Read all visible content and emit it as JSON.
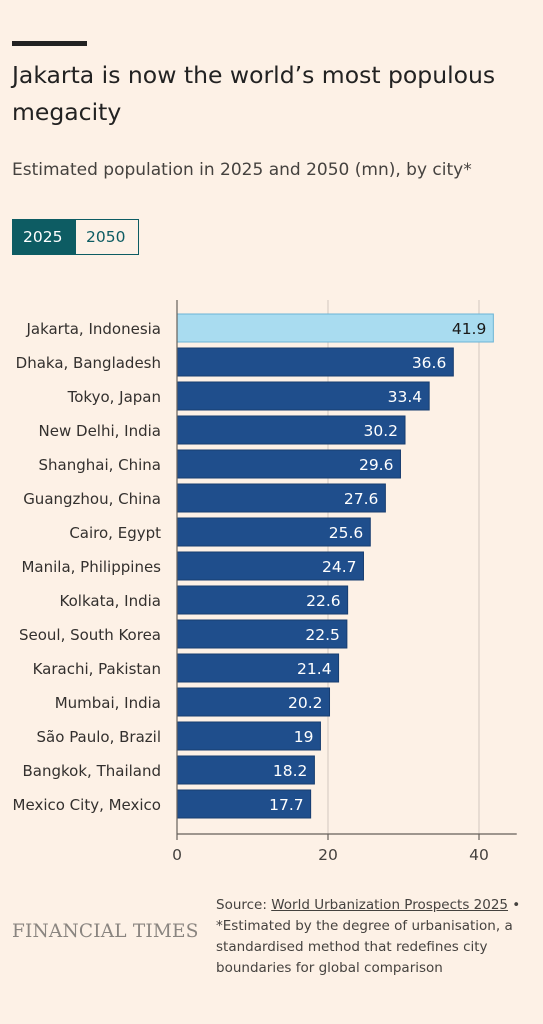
{
  "header": {
    "title": "Jakarta is now the world’s most populous megacity",
    "subtitle": "Estimated population in 2025 and 2050 (mn), by city*"
  },
  "toggle": {
    "options": [
      "2025",
      "2050"
    ],
    "selected": "2025"
  },
  "colors": {
    "bar": "#1f4e8c",
    "highlight": "#a9dcf0",
    "toggle_active": "#0d5c63",
    "background": "#fdf1e6"
  },
  "chart_data": {
    "type": "bar",
    "orientation": "horizontal",
    "categories": [
      "Jakarta, Indonesia",
      "Dhaka, Bangladesh",
      "Tokyo, Japan",
      "New Delhi, India",
      "Shanghai, China",
      "Guangzhou, China",
      "Cairo, Egypt",
      "Manila, Philippines",
      "Kolkata, India",
      "Seoul, South Korea",
      "Karachi, Pakistan",
      "Mumbai, India",
      "São Paulo, Brazil",
      "Bangkok, Thailand",
      "Mexico City, Mexico"
    ],
    "values": [
      41.9,
      36.6,
      33.4,
      30.2,
      29.6,
      27.6,
      25.6,
      24.7,
      22.6,
      22.5,
      21.4,
      20.2,
      19,
      18.2,
      17.7
    ],
    "value_labels": [
      "41.9",
      "36.6",
      "33.4",
      "30.2",
      "29.6",
      "27.6",
      "25.6",
      "24.7",
      "22.6",
      "22.5",
      "21.4",
      "20.2",
      "19",
      "18.2",
      "17.7"
    ],
    "highlight_index": 0,
    "xlim": [
      0,
      45
    ],
    "xticks": [
      0,
      20,
      40
    ],
    "xtick_labels": [
      "0",
      "20",
      "40"
    ],
    "grid": "vertical"
  },
  "footer": {
    "logo": "FINANCIAL TIMES",
    "source_prefix": "Source: ",
    "source_link": "World Urbanization Prospects 2025",
    "source_suffix": " •",
    "note": "*Estimated by the degree of urbanisation, a standardised method that redefines city boundaries for global comparison"
  }
}
